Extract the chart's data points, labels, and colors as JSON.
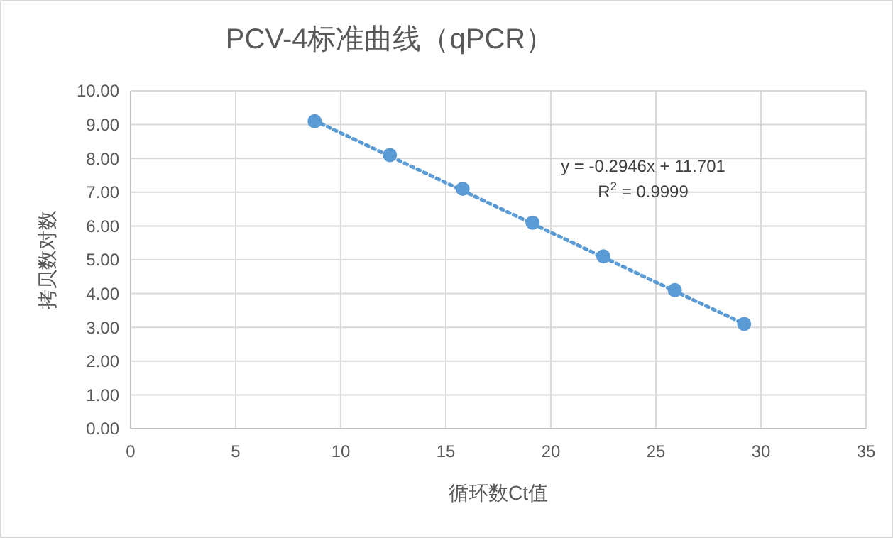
{
  "chart_data": {
    "type": "scatter",
    "title": "PCV-4标准曲线（qPCR）",
    "xlabel": "循环数Ct值",
    "ylabel": "拷贝数对数",
    "series": [
      {
        "color": "#5b9bd5",
        "marker": "circle",
        "x": [
          8.76,
          12.34,
          15.8,
          19.13,
          22.5,
          25.9,
          29.2
        ],
        "values": [
          9.1,
          8.1,
          7.1,
          6.1,
          5.1,
          4.1,
          3.1
        ]
      },
      {
        "type": "line",
        "color": "#5b9bd5",
        "line_style": "dotted",
        "marker": "none",
        "x": [
          8.76,
          29.2
        ],
        "values": [
          9.12,
          3.1
        ]
      }
    ],
    "annotations": [
      "y = -0.2946x + 11.701",
      "R$^{2}$ = 0.9999"
    ],
    "xlim": [
      0,
      35
    ],
    "xticks": [
      0,
      5,
      10,
      15,
      20,
      25,
      30,
      35
    ],
    "ylim": [
      0,
      10
    ],
    "yticks": [
      {
        "value": 0,
        "label": "0.00"
      },
      {
        "value": 1,
        "label": "1.00"
      },
      {
        "value": 2,
        "label": "2.00"
      },
      {
        "value": 3,
        "label": "3.00"
      },
      {
        "value": 4,
        "label": "4.00"
      },
      {
        "value": 5,
        "label": "5.00"
      },
      {
        "value": 6,
        "label": "6.00"
      },
      {
        "value": 7,
        "label": "7.00"
      },
      {
        "value": 8,
        "label": "8.00"
      },
      {
        "value": 9,
        "label": "9.00"
      },
      {
        "value": 10,
        "label": "10.00"
      }
    ],
    "grid": true
  }
}
